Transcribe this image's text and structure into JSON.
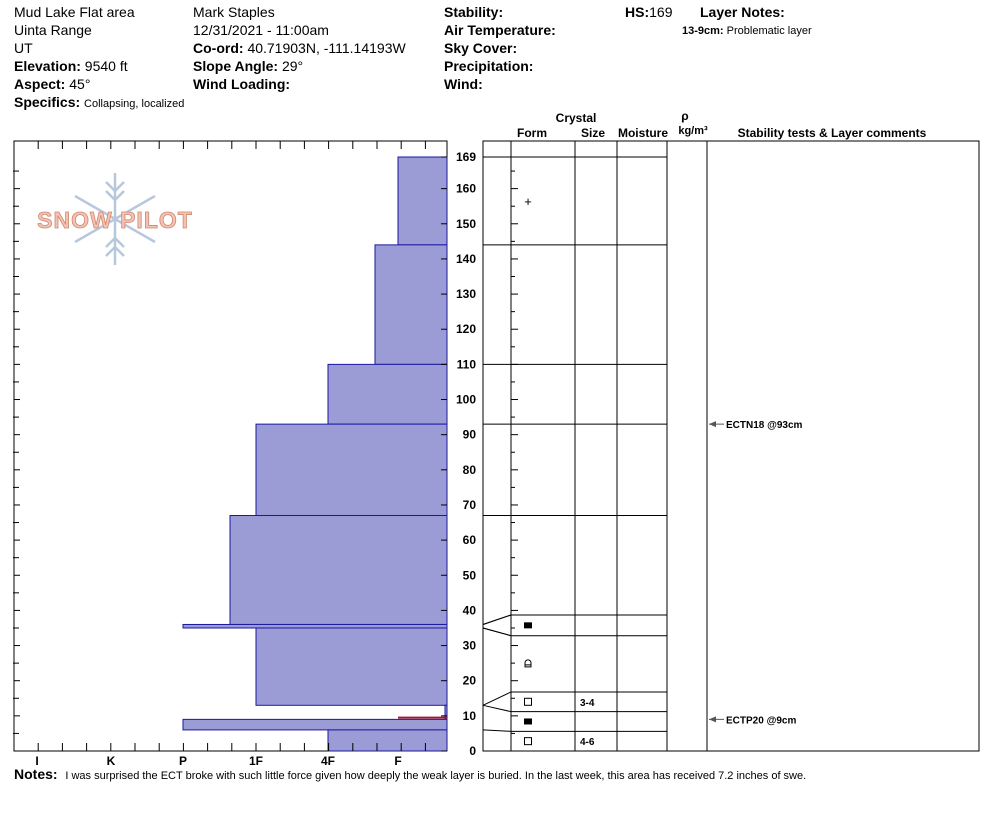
{
  "header": {
    "location": "Mud Lake Flat area",
    "range": "Uinta Range",
    "state": "UT",
    "elevation_label": "Elevation:",
    "elevation": "9540 ft",
    "aspect_label": "Aspect:",
    "aspect": "45°",
    "specifics_label": "Specifics:",
    "specifics": "Collapsing, localized",
    "observer": "Mark Staples",
    "datetime": "12/31/2021 - 11:00am",
    "coord_label": "Co-ord:",
    "coord": "40.71903N, -111.14193W",
    "slope_label": "Slope Angle:",
    "slope": "29°",
    "wind_loading_label": "Wind Loading:",
    "stability_label": "Stability:",
    "air_temp_label": "Air Temperature:",
    "sky_cover_label": "Sky Cover:",
    "precip_label": "Precipitation:",
    "wind_label": "Wind:",
    "hs_label": "HS:",
    "hs": "169",
    "layer_notes_label": "Layer Notes:",
    "layer_note_range": "13-9cm:",
    "layer_note_text": "Problematic layer"
  },
  "columns": {
    "crystal": "Crystal",
    "form": "Form",
    "size": "Size",
    "moisture": "Moisture",
    "rho": "ρ",
    "density_unit": "kg/m³",
    "comments": "Stability tests & Layer comments"
  },
  "logo_text": "SNOW PILOT",
  "notes_label": "Notes:",
  "notes": "I was surprised the ECT broke with such little force given how deeply the weak layer is buried. In the last week, this area has received 7.2 inches of swe.",
  "colors": {
    "layer_fill": "#9b9bd6",
    "layer_stroke": "#1a1aa0",
    "weak_layer": "#a0103a",
    "logo": "#f0a892"
  },
  "chart_data": {
    "type": "snow_profile",
    "y_axis": {
      "label": "",
      "range": [
        0,
        169
      ],
      "ticks": [
        0,
        10,
        20,
        30,
        40,
        50,
        60,
        70,
        80,
        90,
        100,
        110,
        120,
        130,
        140,
        150,
        160,
        169
      ]
    },
    "hardness_scale": [
      "I",
      "K",
      "P",
      "1F",
      "4F",
      "F"
    ],
    "layers": [
      {
        "top": 169,
        "bottom": 144,
        "hardness": "F"
      },
      {
        "top": 144,
        "bottom": 110,
        "hardness": "4F+"
      },
      {
        "top": 110,
        "bottom": 93,
        "hardness": "4F"
      },
      {
        "top": 93,
        "bottom": 67,
        "hardness": "1F"
      },
      {
        "top": 67,
        "bottom": 36,
        "hardness": "P+"
      },
      {
        "top": 36,
        "bottom": 35,
        "hardness": "P"
      },
      {
        "top": 35,
        "bottom": 13,
        "hardness": "1F"
      },
      {
        "top": 13,
        "bottom": 9,
        "hardness": "F+"
      },
      {
        "top": 9,
        "bottom": 6,
        "hardness": "P"
      },
      {
        "top": 6,
        "bottom": 0,
        "hardness": "4F"
      }
    ],
    "weak_layer_cm": 9.5,
    "form_rows": [
      {
        "top": 169,
        "bottom": 144,
        "form": "+",
        "size": ""
      },
      {
        "top": 144,
        "bottom": 110,
        "form": "",
        "size": ""
      },
      {
        "top": 110,
        "bottom": 93,
        "form": "",
        "size": ""
      },
      {
        "top": 93,
        "bottom": 67,
        "form": "",
        "size": ""
      },
      {
        "top": 67,
        "bottom": 38.7,
        "form": "",
        "size": ""
      },
      {
        "top": 38.7,
        "bottom": 32.8,
        "form": "filled-square",
        "size": ""
      },
      {
        "top": 32.8,
        "bottom": 16.8,
        "form": "cup",
        "size": ""
      },
      {
        "top": 16.8,
        "bottom": 11.2,
        "form": "open-square",
        "size": "3-4"
      },
      {
        "top": 11.2,
        "bottom": 5.6,
        "form": "filled-square",
        "size": ""
      },
      {
        "top": 5.6,
        "bottom": 0,
        "form": "open-square",
        "size": "4-6"
      }
    ],
    "stability_tests": [
      {
        "depth": 93,
        "label": "ECTN18 @93cm"
      },
      {
        "depth": 9,
        "label": "ECTP20 @9cm"
      }
    ]
  }
}
